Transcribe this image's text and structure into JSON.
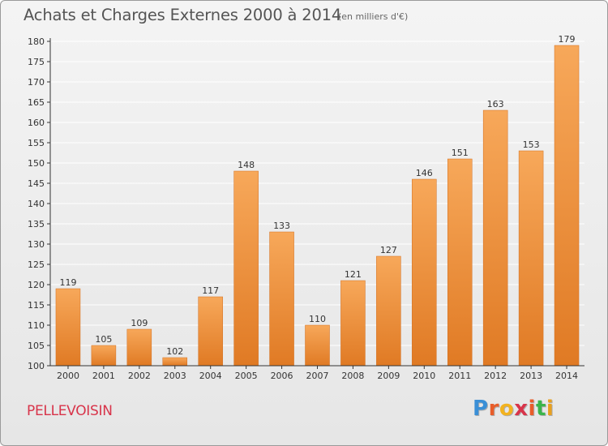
{
  "header": {
    "title": "Achats et Charges Externes 2000 à 2014",
    "unit_note": "(en milliers d'€)"
  },
  "footer": {
    "commune": "PELLEVOISIN",
    "logo_text": "Proxiti",
    "logo_colors": [
      "#3a8fd6",
      "#e85d2a",
      "#f2b21f",
      "#d8344a",
      "#e85d2a",
      "#3ab54a",
      "#e8a01f"
    ]
  },
  "colors": {
    "bar_light": "#f7a85a",
    "bar_dark": "#e07a24",
    "axis": "#333333",
    "grid": "#ffffff"
  },
  "chart_data": {
    "type": "bar",
    "categories": [
      "2000",
      "2001",
      "2002",
      "2003",
      "2004",
      "2005",
      "2006",
      "2007",
      "2008",
      "2009",
      "2010",
      "2011",
      "2012",
      "2013",
      "2014"
    ],
    "values": [
      119,
      105,
      109,
      102,
      117,
      148,
      133,
      110,
      121,
      127,
      146,
      151,
      163,
      153,
      179
    ],
    "ylim": [
      100,
      180
    ],
    "yticks": [
      100,
      105,
      110,
      115,
      120,
      125,
      130,
      135,
      140,
      145,
      150,
      155,
      160,
      165,
      170,
      175,
      180
    ],
    "grid": true,
    "data_labels": true
  }
}
